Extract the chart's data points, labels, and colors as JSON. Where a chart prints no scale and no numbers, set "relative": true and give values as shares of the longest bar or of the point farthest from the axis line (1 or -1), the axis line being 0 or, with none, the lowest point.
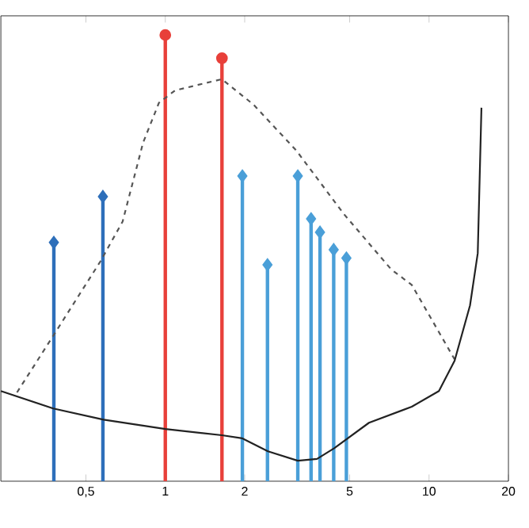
{
  "chart_data": {
    "type": "lollipop",
    "relative": true,
    "log": "x",
    "xlim": [
      0.238,
      20
    ],
    "xticks": [
      {
        "value": 0.5,
        "label": "0,5"
      },
      1,
      2,
      5,
      10,
      20
    ],
    "series": [
      {
        "color": "#2e6fba",
        "marker": "diamond",
        "x": [
          0.378,
          0.58
        ],
        "values": [
          0.535,
          0.638
        ]
      },
      {
        "color": "#e8403a",
        "marker": "circle",
        "x": [
          1.0,
          1.64
        ],
        "values": [
          1.0,
          0.948
        ]
      },
      {
        "color": "#4a9fd8",
        "marker": "diamond",
        "x": [
          1.96,
          2.44,
          3.18,
          3.57,
          3.86,
          4.35,
          4.86
        ],
        "values": [
          0.684,
          0.485,
          0.684,
          0.588,
          0.558,
          0.519,
          0.5
        ]
      },
      {
        "type": "line",
        "line_style": "dashed",
        "marker": "none",
        "color": "#555555",
        "x": [
          0.274,
          0.376,
          0.568,
          0.689,
          0.824,
          0.946,
          1.09,
          1.64,
          2.16,
          3.14,
          4.75,
          7.18,
          8.6,
          12.5
        ],
        "values": [
          0.199,
          0.326,
          0.493,
          0.582,
          0.759,
          0.848,
          0.876,
          0.901,
          0.844,
          0.741,
          0.599,
          0.475,
          0.44,
          0.273
        ]
      },
      {
        "type": "line",
        "line_style": "solid",
        "marker": "none",
        "color": "#222222",
        "x": [
          0.238,
          0.376,
          0.584,
          1.0,
          1.64,
          1.96,
          2.45,
          3.18,
          3.76,
          4.37,
          5.92,
          8.6,
          10.9,
          12.5,
          14.3,
          15.3,
          15.8
        ],
        "values": [
          0.202,
          0.163,
          0.138,
          0.117,
          0.103,
          0.096,
          0.067,
          0.046,
          0.05,
          0.074,
          0.131,
          0.167,
          0.202,
          0.27,
          0.394,
          0.511,
          0.837
        ]
      }
    ]
  }
}
